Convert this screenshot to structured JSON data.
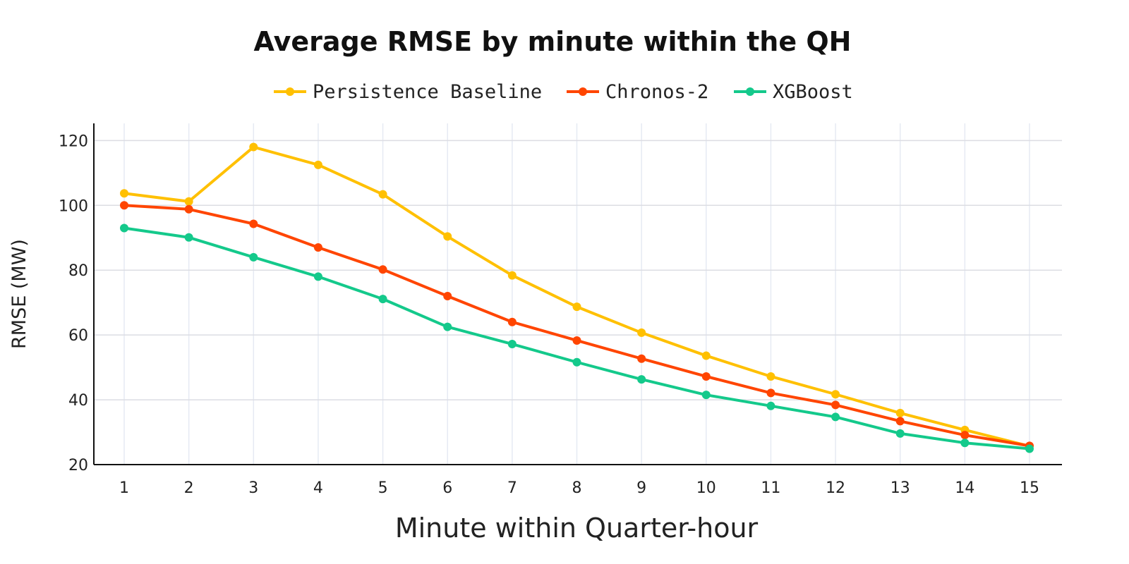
{
  "chart_data": {
    "type": "line",
    "title": "Average RMSE by minute within the QH",
    "xlabel": "Minute within Quarter-hour",
    "ylabel": "RMSE (MW)",
    "x": [
      1,
      2,
      3,
      4,
      5,
      6,
      7,
      8,
      9,
      10,
      11,
      12,
      13,
      14,
      15
    ],
    "xticks": [
      "1",
      "2",
      "3",
      "4",
      "5",
      "6",
      "7",
      "8",
      "9",
      "10",
      "11",
      "12",
      "13",
      "14",
      "15"
    ],
    "yticks": [
      20,
      40,
      60,
      80,
      100,
      120
    ],
    "ylim": [
      20,
      125
    ],
    "grid": true,
    "legend_position": "top-center",
    "series": [
      {
        "name": "Persistence Baseline",
        "color": "#FFC000",
        "values": [
          103.7,
          101.2,
          118.0,
          112.5,
          103.4,
          90.4,
          78.4,
          68.7,
          60.7,
          53.6,
          47.2,
          41.7,
          35.9,
          30.7,
          25.7
        ]
      },
      {
        "name": "Chronos-2",
        "color": "#FF4500",
        "values": [
          100.0,
          98.8,
          94.3,
          87.0,
          80.2,
          72.0,
          64.0,
          58.3,
          52.7,
          47.2,
          42.1,
          38.4,
          33.4,
          29.1,
          25.8
        ]
      },
      {
        "name": "XGBoost",
        "color": "#14C98B",
        "values": [
          93.0,
          90.1,
          84.0,
          78.0,
          71.1,
          62.5,
          57.2,
          51.6,
          46.3,
          41.5,
          38.1,
          34.7,
          29.6,
          26.7,
          24.9
        ]
      }
    ]
  }
}
